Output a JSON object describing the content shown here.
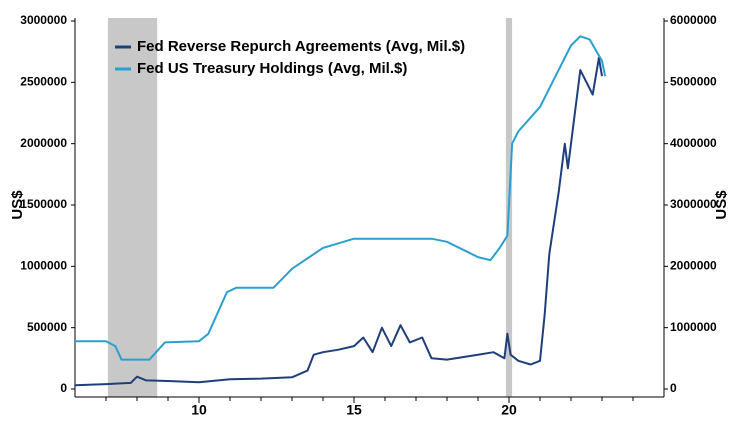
{
  "chart_data": {
    "type": "line",
    "y_label": "US$",
    "y2_label": "US$",
    "xlim": [
      6,
      25
    ],
    "xticks": [
      10,
      15,
      20
    ],
    "xminorticks": [
      7,
      8,
      9,
      11,
      12,
      13,
      14,
      16,
      17,
      18,
      19,
      21,
      22,
      23,
      24
    ],
    "ylim": [
      0,
      3000000
    ],
    "yticks": [
      0,
      500000,
      1000000,
      1500000,
      2000000,
      2500000,
      3000000
    ],
    "y2lim": [
      0,
      6000000
    ],
    "y2ticks": [
      0,
      1000000,
      2000000,
      3000000,
      4000000,
      5000000,
      6000000
    ],
    "shaded_regions": [
      [
        7.06,
        8.65
      ],
      [
        19.9,
        20.1
      ]
    ],
    "shade_color": "#c8c8c8",
    "legend": "upper left",
    "series": [
      {
        "name": "Fed Reverse Repurch Agreements (Avg, Mil.$)",
        "color": "#1f3e7c",
        "x": [
          6,
          7,
          7.8,
          8,
          8.3,
          9,
          10,
          11,
          12,
          13,
          13.5,
          13.7,
          14,
          14.5,
          15,
          15.3,
          15.6,
          15.9,
          16.2,
          16.5,
          16.8,
          17.2,
          17.5,
          18,
          19,
          19.5,
          19.85,
          19.95,
          20.05,
          20.3,
          20.7,
          21,
          21.15,
          21.3,
          21.6,
          21.8,
          21.9,
          22.1,
          22.3,
          22.5,
          22.7,
          22.9,
          23
        ],
        "values": [
          30000,
          40000,
          50000,
          100000,
          70000,
          65000,
          55000,
          80000,
          85000,
          95000,
          150000,
          280000,
          300000,
          320000,
          350000,
          420000,
          300000,
          500000,
          350000,
          520000,
          380000,
          420000,
          250000,
          240000,
          280000,
          300000,
          250000,
          450000,
          280000,
          230000,
          200000,
          230000,
          600000,
          1100000,
          1600000,
          2000000,
          1800000,
          2200000,
          2600000,
          2500000,
          2400000,
          2700000,
          2550000
        ]
      },
      {
        "name": "Fed US Treasury Holdings (Avg, Mil.$)",
        "color": "#2a9fd0",
        "axis": "y2",
        "x": [
          6,
          7,
          7.3,
          7.5,
          8.4,
          8.9,
          10,
          10.3,
          10.9,
          11.2,
          12.4,
          13,
          14,
          15,
          17.5,
          18,
          19,
          19.4,
          19.7,
          19.95,
          20.1,
          20.3,
          21,
          21.5,
          22,
          22.3,
          22.6,
          23,
          23.1
        ],
        "values": [
          780000,
          780000,
          700000,
          480000,
          480000,
          760000,
          780000,
          900000,
          1580000,
          1650000,
          1650000,
          1960000,
          2300000,
          2450000,
          2450000,
          2400000,
          2150000,
          2100000,
          2300000,
          2500000,
          4000000,
          4200000,
          4600000,
          5100000,
          5600000,
          5750000,
          5700000,
          5350000,
          5100000
        ]
      }
    ]
  }
}
